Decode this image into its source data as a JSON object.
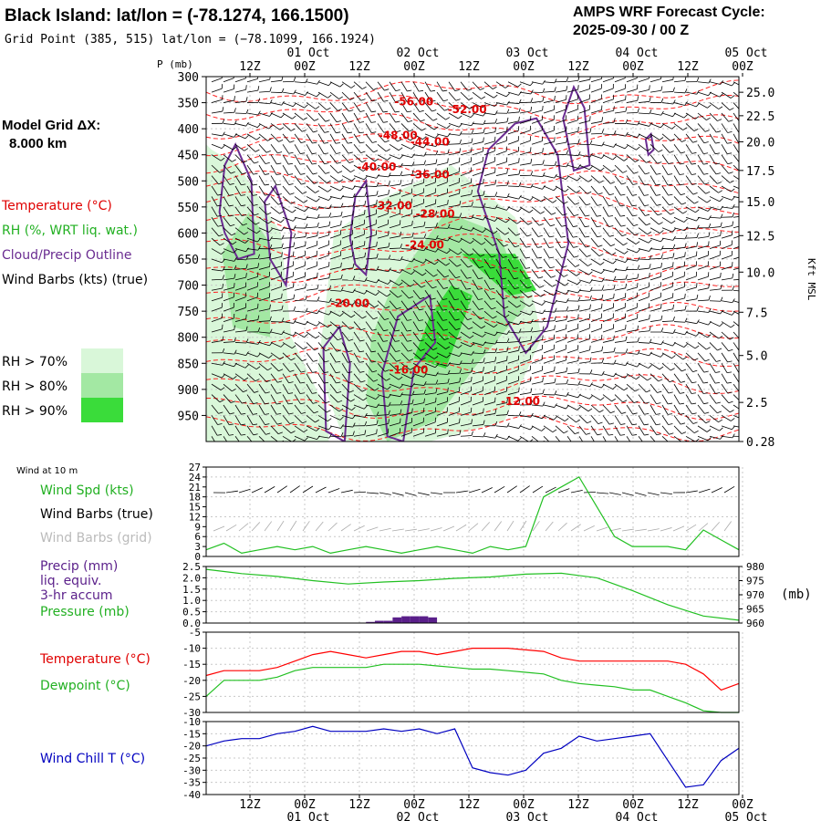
{
  "header": {
    "title": "Black Island:  lat/lon = (-78.1274, 166.1500)",
    "grid_point": "Grid Point (385, 515) lat/lon = (−78.1099, 166.1924)",
    "cycle_title": "AMPS WRF Forecast Cycle:",
    "cycle_date": "2025-09-30 / 00  Z"
  },
  "model_grid": {
    "line1": "Model Grid ΔX:",
    "line2": "8.000 km"
  },
  "time_axis": {
    "count": 11,
    "hours": [
      "12Z",
      "00Z",
      "12Z",
      "00Z",
      "12Z",
      "00Z",
      "12Z",
      "00Z",
      "12Z",
      "00Z"
    ],
    "dates": [
      "01 Oct",
      "02 Oct",
      "03 Oct",
      "04 Oct",
      "05 Oct"
    ]
  },
  "colors": {
    "temperature": "#ff0000",
    "rh": "#22c022",
    "cloud": "#6a2c91",
    "wind_speed": "#22c022",
    "pressure": "#22c022",
    "precip": "#5a1f8a",
    "dewpoint": "#22c022",
    "windchill": "#0000c0",
    "rh70": "#d9f7d9",
    "rh80": "#a3e8a3",
    "rh90": "#3adc3a"
  },
  "cross_section": {
    "p_label": "P (mb)",
    "pressure_ticks": [
      "300",
      "350",
      "400",
      "450",
      "500",
      "550",
      "600",
      "650",
      "700",
      "750",
      "800",
      "850",
      "900",
      "950"
    ],
    "kft_ticks": [
      {
        "p": 330,
        "label": "25.0"
      },
      {
        "p": 375,
        "label": "22.5"
      },
      {
        "p": 425,
        "label": "20.0"
      },
      {
        "p": 480,
        "label": "17.5"
      },
      {
        "p": 540,
        "label": "15.0"
      },
      {
        "p": 605,
        "label": "12.5"
      },
      {
        "p": 675,
        "label": "10.0"
      },
      {
        "p": 752,
        "label": "7.5"
      },
      {
        "p": 835,
        "label": "5.0"
      },
      {
        "p": 925,
        "label": "2.5"
      },
      {
        "p": 1000,
        "label": "0.28"
      }
    ],
    "kft_title": "Kft MSL",
    "temp_labels": [
      {
        "t": 3.9,
        "p": 355,
        "text": "-56.00"
      },
      {
        "t": 4.9,
        "p": 370,
        "text": "-52.00"
      },
      {
        "t": 3.6,
        "p": 420,
        "text": "-48.00"
      },
      {
        "t": 4.2,
        "p": 432,
        "text": "-44.00"
      },
      {
        "t": 3.2,
        "p": 480,
        "text": "-40.00"
      },
      {
        "t": 4.2,
        "p": 495,
        "text": "-36.00"
      },
      {
        "t": 3.5,
        "p": 555,
        "text": "-32.00"
      },
      {
        "t": 4.3,
        "p": 570,
        "text": "-28.00"
      },
      {
        "t": 4.1,
        "p": 630,
        "text": "-24.00"
      },
      {
        "t": 2.7,
        "p": 742,
        "text": "-20.00"
      },
      {
        "t": 3.8,
        "p": 870,
        "text": "-16.00"
      },
      {
        "t": 5.9,
        "p": 930,
        "text": "-12.00"
      }
    ]
  },
  "legend": {
    "temperature": "Temperature (°C)",
    "rh": "RH (%, WRT liq. wat.)",
    "cloud": "Cloud/Precip Outline",
    "barbs": "Wind Barbs (kts) (true)",
    "rh70": "RH > 70%",
    "rh80": "RH > 80%",
    "rh90": "RH > 90%"
  },
  "wind_panel": {
    "title": "Wind at 10 m",
    "labels": [
      "Wind Spd (kts)",
      "Wind Barbs (true)",
      "Wind Barbs (grid)"
    ],
    "ylim": [
      0,
      27
    ],
    "yticks": [
      0,
      3,
      6,
      9,
      12,
      15,
      18,
      21,
      24,
      27
    ]
  },
  "precip_panel": {
    "labels": [
      "Precip (mm)",
      "liq. equiv.",
      "3-hr accum",
      "Pressure (mb)"
    ],
    "left_ylim": [
      0,
      2.5
    ],
    "left_ticks": [
      "0.0",
      "0.5",
      "1.0",
      "1.5",
      "2.0",
      "2.5"
    ],
    "right_ylim": [
      960,
      980
    ],
    "right_ticks": [
      "960",
      "965",
      "970",
      "975",
      "980"
    ],
    "right_unit": "(mb)"
  },
  "temp_panel": {
    "labels": [
      "Temperature (°C)",
      "Dewpoint (°C)"
    ],
    "ylim": [
      -30,
      -5
    ],
    "yticks": [
      "-30",
      "-25",
      "-20",
      "-15",
      "-10",
      "-5"
    ]
  },
  "windchill_panel": {
    "label": "Wind Chill T (°C)",
    "ylim": [
      -40,
      -10
    ],
    "yticks": [
      "-40",
      "-35",
      "-30",
      "-25",
      "-20",
      "-15",
      "-10"
    ]
  },
  "chart_data": [
    {
      "type": "line",
      "title": "Wind at 10 m",
      "x_hours": [
        0,
        6,
        12,
        18,
        24,
        30,
        36,
        42,
        48,
        54,
        60,
        66,
        72,
        78,
        84,
        90,
        96,
        102,
        108,
        114,
        120,
        126,
        132,
        138,
        144,
        150,
        156,
        162,
        168,
        174,
        180
      ],
      "series": [
        {
          "name": "Wind Spd (kts)",
          "values": [
            2,
            4,
            1,
            2,
            3,
            2,
            3,
            1,
            2,
            3,
            2,
            1,
            2,
            3,
            2,
            1,
            3,
            2,
            3,
            18,
            21,
            24,
            15,
            6,
            3,
            3,
            3,
            2,
            8,
            5,
            2
          ]
        }
      ],
      "ylim": [
        0,
        27
      ]
    },
    {
      "type": "bar",
      "title": "Precip (mm) liq. equiv. 3-hr accum",
      "x_hours": [
        54,
        57,
        60,
        63,
        66,
        69,
        72,
        75
      ],
      "values": [
        0.05,
        0.1,
        0.1,
        0.25,
        0.3,
        0.3,
        0.3,
        0.25
      ],
      "ylim": [
        0,
        2.5
      ]
    },
    {
      "type": "line",
      "title": "Pressure (mb)",
      "x_hours": [
        0,
        12,
        24,
        36,
        48,
        60,
        72,
        84,
        96,
        108,
        120,
        132,
        144,
        156,
        168,
        180
      ],
      "series": [
        {
          "name": "Pressure (mb)",
          "values": [
            979,
            977.5,
            976.5,
            975,
            973.8,
            974.5,
            975,
            975.8,
            976.3,
            977.3,
            977.6,
            976,
            971.5,
            966.5,
            962.5,
            961
          ]
        }
      ],
      "ylim": [
        960,
        980
      ]
    },
    {
      "type": "line",
      "title": "Temperature / Dewpoint",
      "x_hours": [
        0,
        6,
        12,
        18,
        24,
        30,
        36,
        42,
        48,
        54,
        60,
        66,
        72,
        78,
        84,
        90,
        96,
        102,
        108,
        114,
        120,
        126,
        132,
        138,
        144,
        150,
        156,
        162,
        168,
        174,
        180
      ],
      "series": [
        {
          "name": "Temperature (°C)",
          "values": [
            -18.5,
            -17,
            -17,
            -17,
            -16,
            -14,
            -12,
            -11,
            -12,
            -13,
            -12,
            -11,
            -11,
            -12,
            -11,
            -10,
            -10,
            -10,
            -10.5,
            -11,
            -13,
            -14,
            -14,
            -14,
            -14,
            -14,
            -14,
            -15,
            -18,
            -23,
            -21
          ]
        },
        {
          "name": "Dewpoint (°C)",
          "values": [
            -25,
            -20,
            -20,
            -20,
            -19,
            -17,
            -16,
            -16,
            -16,
            -16,
            -15,
            -15,
            -15,
            -15.5,
            -16,
            -16.5,
            -16.5,
            -17,
            -17.5,
            -18,
            -20,
            -21,
            -21.5,
            -22,
            -23,
            -23,
            -25,
            -27,
            -29.5,
            -30,
            -30
          ]
        }
      ],
      "ylim": [
        -30,
        -5
      ]
    },
    {
      "type": "line",
      "title": "Wind Chill T (°C)",
      "x_hours": [
        0,
        6,
        12,
        18,
        24,
        30,
        36,
        42,
        48,
        54,
        60,
        66,
        72,
        78,
        84,
        90,
        96,
        102,
        108,
        114,
        120,
        126,
        132,
        138,
        144,
        150,
        156,
        162,
        168,
        174,
        180
      ],
      "series": [
        {
          "name": "Wind Chill T (°C)",
          "values": [
            -20,
            -18,
            -17,
            -17,
            -15,
            -14,
            -12,
            -14,
            -14,
            -14,
            -13,
            -14,
            -13,
            -15,
            -13,
            -29,
            -31,
            -32,
            -30,
            -23,
            -21,
            -16,
            -18,
            -17,
            -16,
            -15,
            -26,
            -37,
            -36,
            -26,
            -21
          ]
        }
      ],
      "ylim": [
        -40,
        -10
      ]
    }
  ]
}
